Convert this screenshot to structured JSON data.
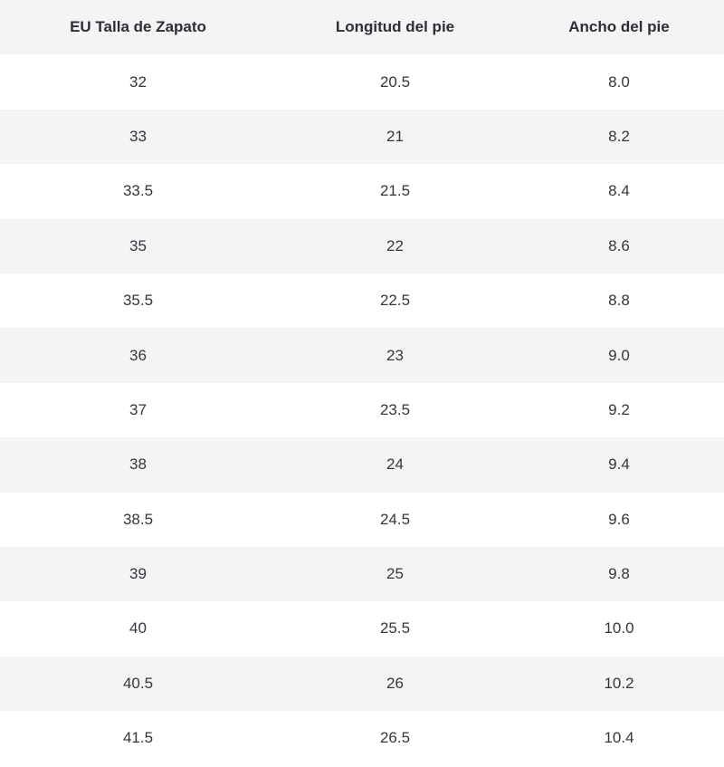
{
  "table": {
    "headers": [
      "EU Talla de Zapato",
      "Longitud del pie",
      "Ancho del pie"
    ],
    "rows": [
      [
        "32",
        "20.5",
        "8.0"
      ],
      [
        "33",
        "21",
        "8.2"
      ],
      [
        "33.5",
        "21.5",
        "8.4"
      ],
      [
        "35",
        "22",
        "8.6"
      ],
      [
        "35.5",
        "22.5",
        "8.8"
      ],
      [
        "36",
        "23",
        "9.0"
      ],
      [
        "37",
        "23.5",
        "9.2"
      ],
      [
        "38",
        "24",
        "9.4"
      ],
      [
        "38.5",
        "24.5",
        "9.6"
      ],
      [
        "39",
        "25",
        "9.8"
      ],
      [
        "40",
        "25.5",
        "10.0"
      ],
      [
        "40.5",
        "26",
        "10.2"
      ],
      [
        "41.5",
        "26.5",
        "10.4"
      ]
    ]
  },
  "colors": {
    "header_bg": "#f4f4f4",
    "stripe_bg": "#f4f4f4",
    "row_bg": "#ffffff",
    "text": "#33363d"
  }
}
